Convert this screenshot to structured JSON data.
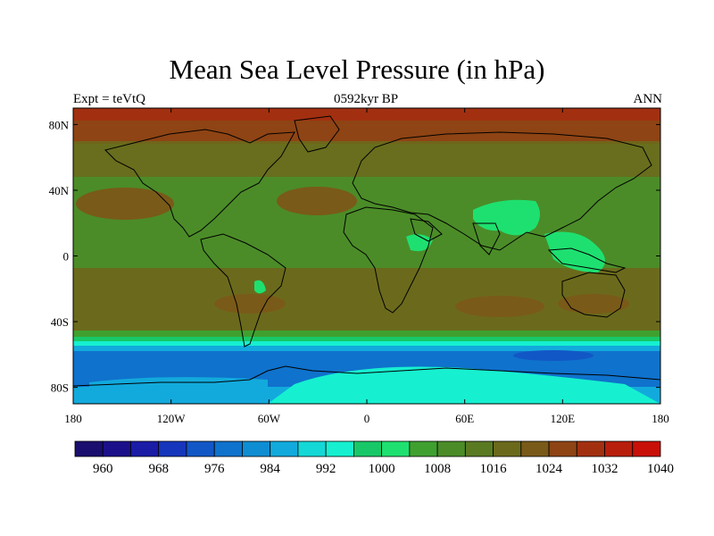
{
  "header": {
    "title": "Mean Sea Level Pressure (in hPa)",
    "subtitle": "0592kyr BP",
    "left_label": "Expt = teVtQ",
    "right_label": "ANN"
  },
  "map": {
    "projection": "cylindrical-equidistant",
    "lon_range": [
      -180,
      180
    ],
    "lat_range": [
      -90,
      90
    ],
    "lon_ticks": [
      "180",
      "120W",
      "60W",
      "0",
      "60E",
      "120E",
      "180"
    ],
    "lat_ticks": [
      "80N",
      "40N",
      "0",
      "40S",
      "80S"
    ],
    "variable": "mean sea level pressure",
    "units": "hPa"
  },
  "colorbar": {
    "labels": [
      "960",
      "968",
      "976",
      "984",
      "992",
      "1000",
      "1008",
      "1016",
      "1024",
      "1032",
      "1040"
    ],
    "levels": [
      960,
      964,
      968,
      972,
      976,
      980,
      984,
      988,
      992,
      996,
      1000,
      1004,
      1008,
      1012,
      1016,
      1020,
      1024,
      1028,
      1032,
      1036,
      1040
    ],
    "colors": [
      "#1a0f6e",
      "#1c108a",
      "#1a1ca6",
      "#1636bc",
      "#1257c6",
      "#0f72cc",
      "#0f8dd2",
      "#12aadc",
      "#14d8d6",
      "#16f0d0",
      "#18c868",
      "#1ee070",
      "#3fa030",
      "#4b8c28",
      "#5a7a22",
      "#6b6a1c",
      "#7a5a18",
      "#8e4414",
      "#a23010",
      "#b81e0c",
      "#c81008"
    ]
  }
}
